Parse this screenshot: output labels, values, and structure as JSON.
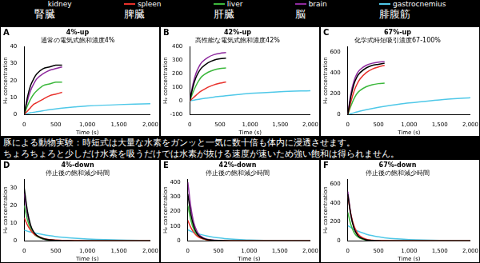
{
  "legend_ja": [
    "腎臓",
    "脾臓",
    "肝臓",
    "脳",
    "腓腹筋"
  ],
  "annotation": [
    "豚による動物実験：時短式は大量な水素をガンッと一気に数十倍も体内に浸透させます。",
    "ちょろちょろと少しだけ水素を吸うだけでは水素が抜ける速度が速いため強い飽和は得られません。"
  ],
  "chart_data": [
    {
      "type": "line",
      "label": "A",
      "title": "4%-up",
      "subtitle": "通常の電気式飽和濃度4%",
      "x_label": "Time (s)",
      "y_label": "H₂ concentration",
      "grid": false,
      "x": [
        0,
        50,
        100,
        150,
        200,
        300,
        400,
        500,
        600,
        800,
        1000,
        1500,
        2000
      ],
      "xlim": [
        0,
        2000
      ],
      "xticks": [
        0,
        500,
        1000,
        1500,
        2000
      ],
      "ylim": [
        0,
        40
      ],
      "yticks": [
        0,
        10,
        20,
        30,
        40
      ],
      "series": [
        {
          "name": "kidney",
          "color": "#000000",
          "values": [
            0,
            10,
            17,
            21,
            24,
            27,
            28,
            29,
            29,
            null,
            null,
            null,
            null
          ]
        },
        {
          "name": "spleen",
          "color": "#e8302a",
          "values": [
            0,
            2,
            4,
            6,
            7,
            9,
            11,
            12,
            13,
            null,
            null,
            null,
            null
          ]
        },
        {
          "name": "liver",
          "color": "#3cb83c",
          "values": [
            0,
            5,
            9,
            12,
            14,
            17,
            18,
            19,
            19,
            null,
            null,
            null,
            null
          ]
        },
        {
          "name": "brain",
          "color": "#8e2a9e",
          "values": [
            0,
            8,
            14,
            18,
            21,
            24,
            26,
            27,
            28,
            null,
            null,
            null,
            null
          ]
        },
        {
          "name": "gastrocnemius",
          "color": "#4fc8e8",
          "values": [
            0,
            0.5,
            1,
            1.3,
            1.6,
            2.2,
            2.8,
            3.3,
            3.7,
            4.4,
            5,
            5.8,
            6.3
          ]
        }
      ]
    },
    {
      "type": "line",
      "label": "B",
      "title": "42%-up",
      "subtitle": "高性能な電気式飽和濃度42%",
      "x_label": "Time (s)",
      "y_label": "H₂ concentration",
      "grid": false,
      "x": [
        0,
        50,
        100,
        150,
        200,
        300,
        400,
        500,
        600,
        800,
        1000,
        1500,
        2000
      ],
      "xlim": [
        0,
        2000
      ],
      "xticks": [
        0,
        500,
        1000,
        1500,
        2000
      ],
      "ylim": [
        -100,
        400
      ],
      "yticks": [
        -100,
        0,
        100,
        200,
        300,
        400
      ],
      "series": [
        {
          "name": "kidney",
          "color": "#000000",
          "values": [
            0,
            100,
            170,
            215,
            245,
            280,
            300,
            310,
            315,
            null,
            null,
            null,
            null
          ]
        },
        {
          "name": "spleen",
          "color": "#e8302a",
          "values": [
            0,
            20,
            40,
            60,
            75,
            100,
            118,
            130,
            140,
            null,
            null,
            null,
            null
          ]
        },
        {
          "name": "liver",
          "color": "#3cb83c",
          "values": [
            0,
            60,
            110,
            150,
            180,
            210,
            228,
            238,
            242,
            null,
            null,
            null,
            null
          ]
        },
        {
          "name": "brain",
          "color": "#8e2a9e",
          "values": [
            0,
            120,
            200,
            250,
            285,
            320,
            340,
            350,
            355,
            null,
            null,
            null,
            null
          ]
        },
        {
          "name": "gastrocnemius",
          "color": "#4fc8e8",
          "values": [
            0,
            4,
            8,
            12,
            16,
            22,
            28,
            33,
            38,
            47,
            55,
            68,
            75
          ]
        }
      ]
    },
    {
      "type": "line",
      "label": "C",
      "title": "67%-up",
      "subtitle": "化学式時短吸引濃度67-100%",
      "x_label": "Time (s)",
      "y_label": "H₂ concentration",
      "grid": false,
      "x": [
        0,
        50,
        100,
        150,
        200,
        300,
        400,
        500,
        600,
        800,
        1000,
        1500,
        2000
      ],
      "xlim": [
        0,
        2000
      ],
      "xticks": [
        0,
        500,
        1000,
        1500,
        2000
      ],
      "ylim": [
        0,
        650
      ],
      "yticks": [
        0,
        200,
        400,
        600
      ],
      "series": [
        {
          "name": "kidney",
          "color": "#000000",
          "values": [
            0,
            170,
            290,
            360,
            400,
            445,
            470,
            480,
            490,
            null,
            null,
            null,
            null
          ]
        },
        {
          "name": "spleen",
          "color": "#e8302a",
          "values": [
            0,
            120,
            220,
            290,
            340,
            400,
            435,
            455,
            470,
            null,
            null,
            null,
            null
          ]
        },
        {
          "name": "liver",
          "color": "#3cb83c",
          "values": [
            0,
            80,
            150,
            200,
            230,
            265,
            285,
            295,
            300,
            null,
            null,
            null,
            null
          ]
        },
        {
          "name": "brain",
          "color": "#8e2a9e",
          "values": [
            0,
            200,
            320,
            390,
            430,
            470,
            490,
            500,
            505,
            null,
            null,
            null,
            null
          ]
        },
        {
          "name": "gastrocnemius",
          "color": "#4fc8e8",
          "values": [
            0,
            8,
            16,
            24,
            32,
            45,
            57,
            68,
            78,
            95,
            110,
            140,
            160
          ]
        }
      ]
    },
    {
      "type": "line",
      "label": "D",
      "title": "4%-down",
      "subtitle": "停止後の飽和減少時間",
      "x_label": "Time (s)",
      "y_label": "H₂ concentration",
      "grid": false,
      "x": [
        0,
        50,
        100,
        150,
        200,
        300,
        400,
        500,
        600,
        800,
        1000,
        1500,
        2000
      ],
      "xlim": [
        0,
        2000
      ],
      "xticks": [
        0,
        500,
        1000,
        1500,
        2000
      ],
      "ylim": [
        0,
        35
      ],
      "yticks": [
        0,
        10,
        20,
        30
      ],
      "series": [
        {
          "name": "kidney",
          "color": "#000000",
          "values": [
            30,
            17,
            9,
            5,
            3,
            1.2,
            0.5,
            0.2,
            0.1,
            0,
            0,
            0,
            0
          ]
        },
        {
          "name": "spleen",
          "color": "#e8302a",
          "values": [
            13,
            9,
            6,
            4,
            2.8,
            1.4,
            0.7,
            0.4,
            0.2,
            0.1,
            0,
            0,
            0
          ]
        },
        {
          "name": "liver",
          "color": "#3cb83c",
          "values": [
            20,
            12,
            7,
            4,
            2.5,
            1,
            0.5,
            0.2,
            0.1,
            0,
            0,
            0,
            0
          ]
        },
        {
          "name": "brain",
          "color": "#8e2a9e",
          "values": [
            27,
            15,
            8,
            4.5,
            2.6,
            1,
            0.4,
            0.2,
            0.1,
            0,
            0,
            0,
            0
          ]
        },
        {
          "name": "gastrocnemius",
          "color": "#4fc8e8",
          "values": [
            6,
            5.5,
            5,
            4.6,
            4.2,
            3.5,
            2.9,
            2.4,
            2,
            1.4,
            1,
            0.4,
            0.2
          ]
        }
      ]
    },
    {
      "type": "line",
      "label": "E",
      "title": "42%-down",
      "subtitle": "停止後の飽和減少時間",
      "x_label": "Time (s)",
      "y_label": "H₂ concentration",
      "grid": false,
      "x": [
        0,
        50,
        100,
        150,
        200,
        300,
        400,
        500,
        600,
        800,
        1000,
        1500,
        2000
      ],
      "xlim": [
        0,
        2000
      ],
      "xticks": [
        0,
        500,
        1000,
        1500,
        2000
      ],
      "ylim": [
        0,
        420
      ],
      "yticks": [
        0,
        100,
        200,
        300,
        400
      ],
      "series": [
        {
          "name": "kidney",
          "color": "#000000",
          "values": [
            320,
            180,
            95,
            50,
            28,
            10,
            4,
            2,
            1,
            0,
            0,
            0,
            0
          ]
        },
        {
          "name": "spleen",
          "color": "#e8302a",
          "values": [
            140,
            90,
            55,
            33,
            20,
            8,
            3,
            1,
            0,
            0,
            0,
            0,
            0
          ]
        },
        {
          "name": "liver",
          "color": "#3cb83c",
          "values": [
            240,
            140,
            75,
            40,
            22,
            8,
            3,
            1,
            0,
            0,
            0,
            0,
            0
          ]
        },
        {
          "name": "brain",
          "color": "#8e2a9e",
          "values": [
            400,
            230,
            120,
            65,
            35,
            12,
            5,
            2,
            1,
            0,
            0,
            0,
            0
          ]
        },
        {
          "name": "gastrocnemius",
          "color": "#4fc8e8",
          "values": [
            75,
            65,
            57,
            50,
            44,
            34,
            26,
            20,
            15,
            9,
            5,
            1,
            0
          ]
        }
      ]
    },
    {
      "type": "line",
      "label": "F",
      "title": "67%-down",
      "subtitle": "停止後の飽和減少時間",
      "x_label": "Time (s)",
      "y_label": "H₂ concentration",
      "grid": false,
      "x": [
        0,
        50,
        100,
        150,
        200,
        300,
        400,
        500,
        600,
        800,
        1000,
        1500,
        2000
      ],
      "xlim": [
        0,
        2000
      ],
      "xticks": [
        0,
        500,
        1000,
        1500,
        2000
      ],
      "ylim": [
        0,
        650
      ],
      "yticks": [
        0,
        200,
        400,
        600
      ],
      "series": [
        {
          "name": "kidney",
          "color": "#000000",
          "values": [
            490,
            270,
            135,
            68,
            34,
            10,
            3,
            1,
            0,
            0,
            0,
            0,
            0
          ]
        },
        {
          "name": "spleen",
          "color": "#e8302a",
          "values": [
            470,
            280,
            160,
            90,
            50,
            16,
            5,
            2,
            1,
            0,
            0,
            0,
            0
          ]
        },
        {
          "name": "liver",
          "color": "#3cb83c",
          "values": [
            300,
            170,
            90,
            48,
            26,
            8,
            3,
            1,
            0,
            0,
            0,
            0,
            0
          ]
        },
        {
          "name": "brain",
          "color": "#8e2a9e",
          "values": [
            520,
            280,
            140,
            70,
            35,
            10,
            3,
            1,
            0,
            0,
            0,
            0,
            0
          ]
        },
        {
          "name": "gastrocnemius",
          "color": "#4fc8e8",
          "values": [
            160,
            140,
            120,
            105,
            92,
            70,
            54,
            42,
            32,
            20,
            12,
            4,
            1
          ]
        }
      ]
    }
  ]
}
